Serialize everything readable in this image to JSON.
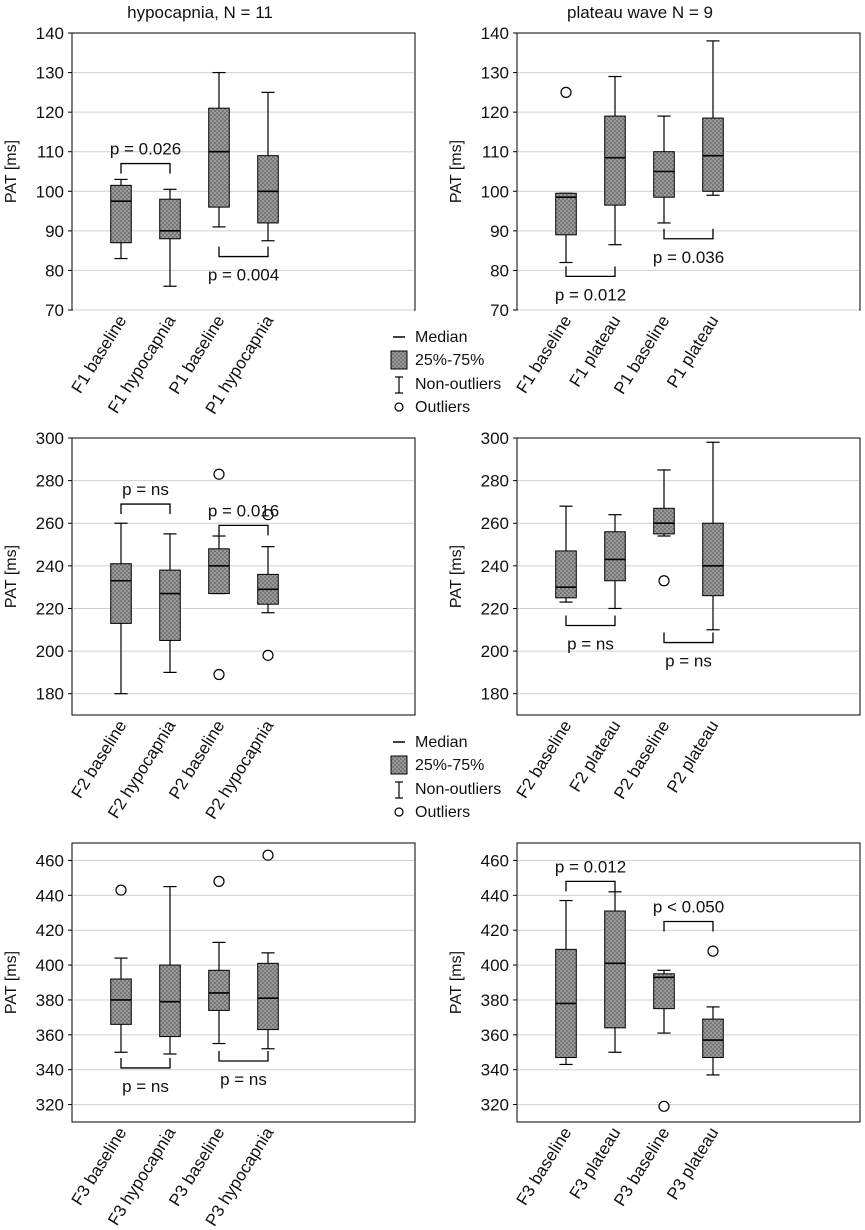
{
  "colors": {
    "box_fill": "#8f8f8f",
    "grid": "#d0d0d0",
    "axis": "#000000",
    "text": "#111111"
  },
  "titles": {
    "left": "hypocapnia, N = 11",
    "right": "plateau wave N = 9"
  },
  "legends": [
    {
      "median": "Median",
      "box": "25%-75%",
      "whisker": "Non-outliers",
      "outlier": "Outliers"
    },
    {
      "median": "Median",
      "box": "25%-75%",
      "whisker": "Non-outliers",
      "outlier": "Outliers"
    }
  ],
  "chart_data": [
    {
      "id": "p1",
      "type": "box",
      "title": "hypocapnia, N = 11",
      "ylabel": "PAT [ms]",
      "ylim": [
        70,
        140
      ],
      "yticks": [
        70,
        80,
        90,
        100,
        110,
        120,
        130,
        140
      ],
      "categories": [
        "F1 baseline",
        "F1 hypocapnia",
        "P1 baseline",
        "P1 hypocapnia"
      ],
      "boxes": [
        {
          "min": 83,
          "q1": 87,
          "median": 97.5,
          "q3": 101.5,
          "max": 103,
          "outliers": []
        },
        {
          "min": 76,
          "q1": 88,
          "median": 90,
          "q3": 98,
          "max": 100.5,
          "outliers": []
        },
        {
          "min": 91,
          "q1": 96,
          "median": 110,
          "q3": 121,
          "max": 130,
          "outliers": []
        },
        {
          "min": 87.5,
          "q1": 92,
          "median": 100,
          "q3": 109,
          "max": 125,
          "outliers": []
        }
      ],
      "annotations": [
        {
          "text": "p = 0.026",
          "from": 0,
          "to": 1,
          "y": 107,
          "dir": "down",
          "labelPos": "above"
        },
        {
          "text": "p = 0.004",
          "from": 2,
          "to": 3,
          "y": 83.5,
          "dir": "up",
          "labelPos": "below"
        }
      ]
    },
    {
      "id": "p2",
      "type": "box",
      "title": "plateau wave N = 9",
      "ylabel": "PAT [ms]",
      "ylim": [
        70,
        140
      ],
      "yticks": [
        70,
        80,
        90,
        100,
        110,
        120,
        130,
        140
      ],
      "categories": [
        "F1 baseline",
        "F1 plateau",
        "P1 baseline",
        "P1 plateau"
      ],
      "boxes": [
        {
          "min": 82,
          "q1": 89,
          "median": 98.5,
          "q3": 99.5,
          "max": 99.5,
          "outliers": [
            125
          ]
        },
        {
          "min": 86.5,
          "q1": 96.5,
          "median": 108.5,
          "q3": 119,
          "max": 129,
          "outliers": []
        },
        {
          "min": 92,
          "q1": 98.5,
          "median": 105,
          "q3": 110,
          "max": 119,
          "outliers": []
        },
        {
          "min": 99,
          "q1": 100,
          "median": 109,
          "q3": 118.5,
          "max": 138,
          "outliers": []
        }
      ],
      "annotations": [
        {
          "text": "p = 0.012",
          "from": 0,
          "to": 1,
          "y": 78.5,
          "dir": "up",
          "labelPos": "below"
        },
        {
          "text": "p = 0.036",
          "from": 2,
          "to": 3,
          "y": 88,
          "dir": "up",
          "labelPos": "below"
        }
      ]
    },
    {
      "id": "p3",
      "type": "box",
      "ylabel": "PAT [ms]",
      "ylim": [
        170,
        300
      ],
      "yticks": [
        180,
        200,
        220,
        240,
        260,
        280,
        300
      ],
      "categories": [
        "F2 baseline",
        "F2 hypocapnia",
        "P2 baseline",
        "P2 hypocapnia"
      ],
      "boxes": [
        {
          "min": 180,
          "q1": 213,
          "median": 233,
          "q3": 241,
          "max": 260,
          "outliers": []
        },
        {
          "min": 190,
          "q1": 205,
          "median": 227,
          "q3": 238,
          "max": 255,
          "outliers": []
        },
        {
          "min": 227,
          "q1": 227,
          "median": 240,
          "q3": 248,
          "max": 254,
          "outliers": [
            283,
            189
          ]
        },
        {
          "min": 218,
          "q1": 222,
          "median": 229,
          "q3": 236,
          "max": 249,
          "outliers": [
            264,
            198
          ]
        }
      ],
      "annotations": [
        {
          "text": "p = ns",
          "from": 0,
          "to": 1,
          "y": 269,
          "dir": "down",
          "labelPos": "above"
        },
        {
          "text": "p = 0.016",
          "from": 2,
          "to": 3,
          "y": 259,
          "dir": "down",
          "labelPos": "above"
        }
      ]
    },
    {
      "id": "p4",
      "type": "box",
      "ylabel": "PAT [ms]",
      "ylim": [
        170,
        300
      ],
      "yticks": [
        180,
        200,
        220,
        240,
        260,
        280,
        300
      ],
      "categories": [
        "F2 baseline",
        "F2 plateau",
        "P2 baseline",
        "P2 plateau"
      ],
      "boxes": [
        {
          "min": 223,
          "q1": 225,
          "median": 230,
          "q3": 247,
          "max": 268,
          "outliers": []
        },
        {
          "min": 220,
          "q1": 233,
          "median": 243,
          "q3": 256,
          "max": 264,
          "outliers": []
        },
        {
          "min": 254,
          "q1": 255,
          "median": 260,
          "q3": 267,
          "max": 285,
          "outliers": [
            233
          ]
        },
        {
          "min": 210,
          "q1": 226,
          "median": 240,
          "q3": 260,
          "max": 298,
          "outliers": []
        }
      ],
      "annotations": [
        {
          "text": "p = ns",
          "from": 0,
          "to": 1,
          "y": 212,
          "dir": "up",
          "labelPos": "below"
        },
        {
          "text": "p = ns",
          "from": 2,
          "to": 3,
          "y": 204,
          "dir": "up",
          "labelPos": "below"
        }
      ]
    },
    {
      "id": "p5",
      "type": "box",
      "ylabel": "PAT [ms]",
      "ylim": [
        310,
        470
      ],
      "yticks": [
        320,
        340,
        360,
        380,
        400,
        420,
        440,
        460
      ],
      "categories": [
        "F3 baseline",
        "F3 hypocapnia",
        "P3 baseline",
        "P3 hypocapnia"
      ],
      "boxes": [
        {
          "min": 350,
          "q1": 366,
          "median": 380,
          "q3": 392,
          "max": 404,
          "outliers": [
            443
          ]
        },
        {
          "min": 349,
          "q1": 359,
          "median": 379,
          "q3": 400,
          "max": 445,
          "outliers": []
        },
        {
          "min": 355,
          "q1": 374,
          "median": 384,
          "q3": 397,
          "max": 413,
          "outliers": [
            448
          ]
        },
        {
          "min": 352,
          "q1": 363,
          "median": 381,
          "q3": 401,
          "max": 407,
          "outliers": [
            463
          ]
        }
      ],
      "annotations": [
        {
          "text": "p = ns",
          "from": 0,
          "to": 1,
          "y": 341,
          "dir": "up",
          "labelPos": "below"
        },
        {
          "text": "p = ns",
          "from": 2,
          "to": 3,
          "y": 345,
          "dir": "up",
          "labelPos": "below"
        }
      ]
    },
    {
      "id": "p6",
      "type": "box",
      "ylabel": "PAT [ms]",
      "ylim": [
        310,
        470
      ],
      "yticks": [
        320,
        340,
        360,
        380,
        400,
        420,
        440,
        460
      ],
      "categories": [
        "F3 baseline",
        "F3 plateau",
        "P3 baseline",
        "P3 plateau"
      ],
      "boxes": [
        {
          "min": 343,
          "q1": 347,
          "median": 378,
          "q3": 409,
          "max": 437,
          "outliers": []
        },
        {
          "min": 350,
          "q1": 364,
          "median": 401,
          "q3": 431,
          "max": 442,
          "outliers": []
        },
        {
          "min": 361,
          "q1": 375,
          "median": 393,
          "q3": 395,
          "max": 397,
          "outliers": [
            319
          ]
        },
        {
          "min": 337,
          "q1": 347,
          "median": 357,
          "q3": 369,
          "max": 376,
          "outliers": [
            408
          ]
        }
      ],
      "annotations": [
        {
          "text": "p = 0.012",
          "from": 0,
          "to": 1,
          "y": 448,
          "dir": "down",
          "labelPos": "above"
        },
        {
          "text": "p < 0.050",
          "from": 2,
          "to": 3,
          "y": 425,
          "dir": "down",
          "labelPos": "above"
        }
      ]
    }
  ]
}
